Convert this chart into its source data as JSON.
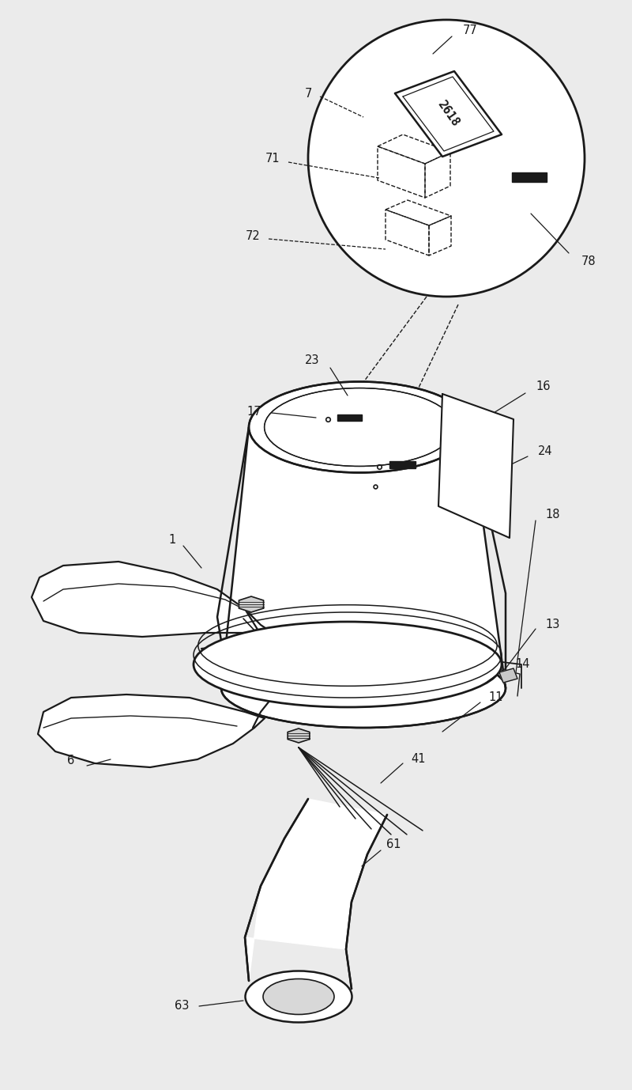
{
  "bg_color": "#ebebeb",
  "line_color": "#1a1a1a",
  "label_color": "#1a1a1a",
  "label_fontsize": 10.5,
  "fig_width": 8.0,
  "fig_height": 13.78
}
